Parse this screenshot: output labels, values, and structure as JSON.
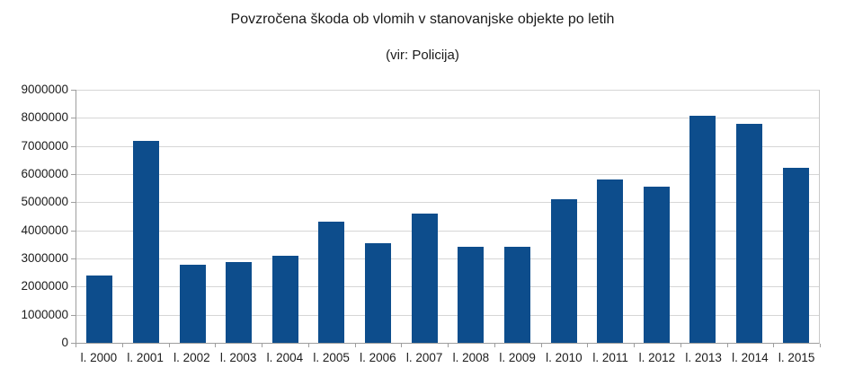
{
  "page": {
    "background_color": "#ffffff",
    "text_color": "#1c1c1c"
  },
  "chart_data": {
    "type": "bar",
    "title": "Povzročena škoda ob vlomih v stanovanjske objekte po letih",
    "subtitle": "(vir: Policija)",
    "categories": [
      "l. 2000",
      "l. 2001",
      "l. 2002",
      "l. 2003",
      "l. 2004",
      "l. 2005",
      "l. 2006",
      "l. 2007",
      "l. 2008",
      "l. 2009",
      "l. 2010",
      "l. 2011",
      "l. 2012",
      "l. 2013",
      "l. 2014",
      "l. 2015"
    ],
    "values": [
      2400000,
      7180000,
      2780000,
      2880000,
      3080000,
      4310000,
      3540000,
      4610000,
      3410000,
      3400000,
      5100000,
      5810000,
      5540000,
      8070000,
      7780000,
      6210000
    ],
    "xlabel": "",
    "ylabel": "",
    "ylim": [
      0,
      9000000
    ],
    "ytick_step": 1000000,
    "ytick_labels": [
      "0",
      "1000000",
      "2000000",
      "3000000",
      "4000000",
      "5000000",
      "6000000",
      "7000000",
      "8000000",
      "9000000"
    ],
    "grid": "horizontal",
    "legend": "none",
    "bar_color": "#0d4d8c",
    "grid_color": "#d6d6d6",
    "axis_color": "#9e9e9e"
  }
}
